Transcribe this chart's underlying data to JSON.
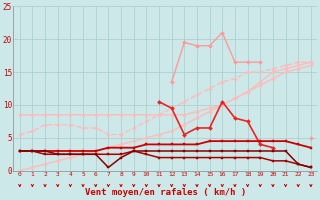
{
  "x": [
    0,
    1,
    2,
    3,
    4,
    5,
    6,
    7,
    8,
    9,
    10,
    11,
    12,
    13,
    14,
    15,
    16,
    17,
    18,
    19,
    20,
    21,
    22,
    23
  ],
  "series": [
    {
      "name": "pale_pink_flat_top",
      "y": [
        8.5,
        8.5,
        8.5,
        8.5,
        8.5,
        8.5,
        8.5,
        8.5,
        8.5,
        8.5,
        8.5,
        8.5,
        8.5,
        8.5,
        9.0,
        9.5,
        10.0,
        11.0,
        12.0,
        13.5,
        15.0,
        15.5,
        16.0,
        16.5
      ],
      "color": "#ffbbbb",
      "marker": "D",
      "markersize": 1.8,
      "linewidth": 1.0,
      "linestyle": "-",
      "zorder": 2
    },
    {
      "name": "pale_pink_rising",
      "y": [
        5.5,
        6.0,
        7.0,
        7.0,
        7.0,
        6.5,
        6.5,
        5.5,
        5.5,
        6.5,
        7.5,
        8.5,
        9.5,
        10.5,
        11.5,
        12.5,
        13.5,
        14.0,
        15.0,
        15.0,
        15.5,
        16.0,
        16.5,
        16.5
      ],
      "color": "#ffbbbb",
      "marker": "D",
      "markersize": 1.8,
      "linewidth": 1.0,
      "linestyle": "--",
      "zorder": 2
    },
    {
      "name": "pale_pink_linear_low",
      "y": [
        0.0,
        0.5,
        1.0,
        1.5,
        2.0,
        2.5,
        3.0,
        3.5,
        4.0,
        4.5,
        5.0,
        5.5,
        6.0,
        7.0,
        8.0,
        9.0,
        10.0,
        11.0,
        12.0,
        13.0,
        14.0,
        15.0,
        15.5,
        16.0
      ],
      "color": "#ffbbbb",
      "marker": "D",
      "markersize": 1.8,
      "linewidth": 1.0,
      "linestyle": "-",
      "zorder": 2
    },
    {
      "name": "medium_pink_peaked",
      "y": [
        null,
        null,
        null,
        null,
        null,
        null,
        null,
        null,
        null,
        null,
        null,
        null,
        13.5,
        19.5,
        19.0,
        19.0,
        21.0,
        16.5,
        16.5,
        16.5,
        null,
        null,
        null,
        null
      ],
      "color": "#ff9999",
      "marker": "D",
      "markersize": 2.0,
      "linewidth": 1.0,
      "linestyle": "-",
      "zorder": 3
    },
    {
      "name": "medium_pink_end",
      "y": [
        null,
        null,
        null,
        null,
        null,
        null,
        null,
        null,
        null,
        null,
        null,
        null,
        null,
        null,
        null,
        null,
        null,
        null,
        null,
        null,
        null,
        null,
        null,
        5.0
      ],
      "color": "#ff9999",
      "marker": "D",
      "markersize": 2.0,
      "linewidth": 1.0,
      "linestyle": "-",
      "zorder": 3
    },
    {
      "name": "red_peaked_main",
      "y": [
        null,
        null,
        null,
        null,
        null,
        null,
        null,
        null,
        null,
        null,
        null,
        10.5,
        9.5,
        5.5,
        6.5,
        6.5,
        10.5,
        8.0,
        7.5,
        4.0,
        3.5,
        null,
        null,
        null
      ],
      "color": "#ee2222",
      "marker": "D",
      "markersize": 2.0,
      "linewidth": 1.2,
      "linestyle": "-",
      "zorder": 4
    },
    {
      "name": "dark_red_upper_flat",
      "y": [
        3.0,
        3.0,
        3.0,
        3.0,
        3.0,
        3.0,
        3.0,
        3.5,
        3.5,
        3.5,
        4.0,
        4.0,
        4.0,
        4.0,
        4.0,
        4.5,
        4.5,
        4.5,
        4.5,
        4.5,
        4.5,
        4.5,
        4.0,
        3.5
      ],
      "color": "#cc0000",
      "marker": "s",
      "markersize": 1.8,
      "linewidth": 1.3,
      "linestyle": "-",
      "zorder": 5
    },
    {
      "name": "dark_red_lower_flat",
      "y": [
        3.0,
        3.0,
        2.5,
        2.5,
        2.5,
        2.5,
        2.5,
        2.5,
        2.5,
        3.0,
        2.5,
        2.0,
        2.0,
        2.0,
        2.0,
        2.0,
        2.0,
        2.0,
        2.0,
        2.0,
        1.5,
        1.5,
        1.0,
        0.5
      ],
      "color": "#aa0000",
      "marker": "s",
      "markersize": 1.8,
      "linewidth": 1.1,
      "linestyle": "-",
      "zorder": 5
    },
    {
      "name": "dark_red_dip_line",
      "y": [
        3.0,
        3.0,
        3.0,
        2.5,
        2.5,
        2.5,
        2.5,
        0.5,
        2.0,
        3.0,
        3.0,
        3.0,
        3.0,
        3.0,
        3.0,
        3.0,
        3.0,
        3.0,
        3.0,
        3.0,
        3.0,
        3.0,
        1.0,
        0.5
      ],
      "color": "#880000",
      "marker": "s",
      "markersize": 1.8,
      "linewidth": 1.1,
      "linestyle": "-",
      "zorder": 5
    }
  ],
  "xlim": [
    -0.5,
    23.5
  ],
  "ylim": [
    0,
    25
  ],
  "yticks": [
    0,
    5,
    10,
    15,
    20,
    25
  ],
  "xticks": [
    0,
    1,
    2,
    3,
    4,
    5,
    6,
    7,
    8,
    9,
    10,
    11,
    12,
    13,
    14,
    15,
    16,
    17,
    18,
    19,
    20,
    21,
    22,
    23
  ],
  "xlabel": "Vent moyen/en rafales ( km/h )",
  "bg_color": "#cce8e8",
  "grid_color": "#aacccc",
  "text_color": "#cc0000",
  "arrow_color": "#cc0000",
  "spine_color": "#888888"
}
